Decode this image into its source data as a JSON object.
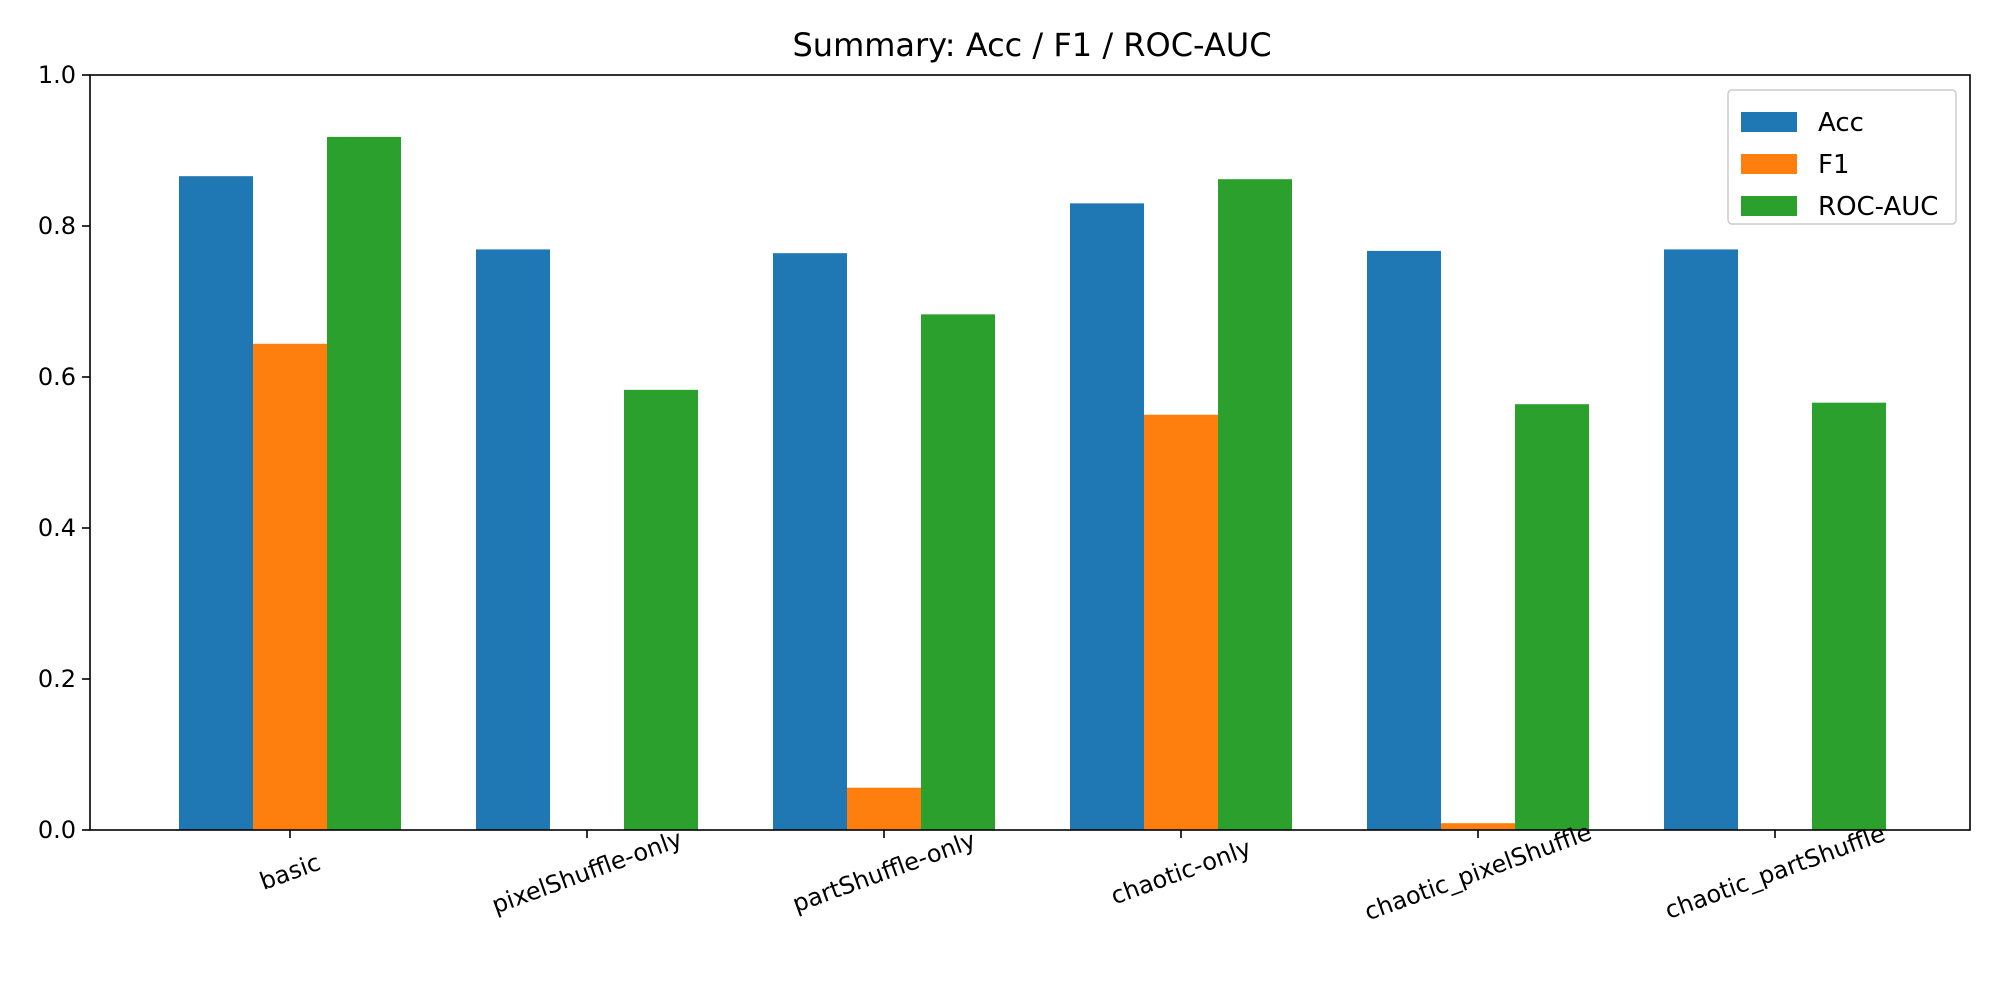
{
  "chart_data": {
    "type": "bar",
    "title": "Summary: Acc / F1 / ROC-AUC",
    "xlabel": "",
    "ylabel": "",
    "ylim": [
      0,
      1.0
    ],
    "yticks": [
      "0.0",
      "0.2",
      "0.4",
      "0.6",
      "0.8",
      "1.0"
    ],
    "grid": false,
    "legend_position": "top-right",
    "categories": [
      "basic",
      "pixelShuffle-only",
      "partShuffle-only",
      "chaotic-only",
      "chaotic_pixelShuffle",
      "chaotic_partShuffle"
    ],
    "series": [
      {
        "name": "Acc",
        "color": "#1f77b4",
        "values": [
          0.866,
          0.769,
          0.764,
          0.83,
          0.767,
          0.769
        ]
      },
      {
        "name": "F1",
        "color": "#ff7f0e",
        "values": [
          0.644,
          0.0,
          0.056,
          0.55,
          0.009,
          0.0
        ]
      },
      {
        "name": "ROC-AUC",
        "color": "#2ca02c",
        "values": [
          0.918,
          0.583,
          0.683,
          0.862,
          0.564,
          0.566
        ]
      }
    ]
  }
}
